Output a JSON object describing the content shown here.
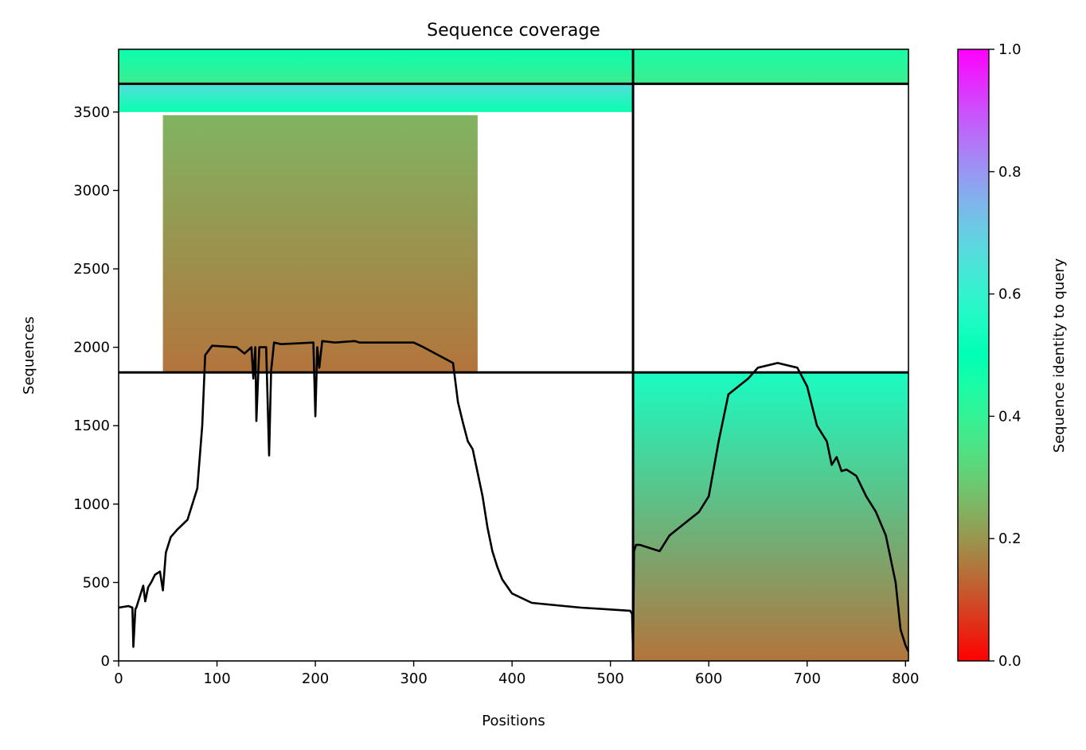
{
  "chart_data": {
    "type": "heatmap",
    "title": "Sequence coverage",
    "xlabel": "Positions",
    "ylabel": "Sequences",
    "xlim": [
      0,
      803
    ],
    "ylim": [
      0,
      3900
    ],
    "xticks": [
      0,
      100,
      200,
      300,
      400,
      500,
      600,
      700,
      800
    ],
    "yticks": [
      0,
      500,
      1000,
      1500,
      2000,
      2500,
      3000,
      3500
    ],
    "grid": false,
    "colorbar": {
      "label": "Sequence identity to query",
      "colormap": "rainbow_r",
      "range": [
        0.0,
        1.0
      ],
      "ticks": [
        0.0,
        0.2,
        0.4,
        0.6,
        0.8,
        1.0
      ],
      "tick_labels": [
        "0.0",
        "0.2",
        "0.4",
        "0.6",
        "0.8",
        "1.0"
      ]
    },
    "partition_lines": {
      "x": [
        523
      ],
      "y": [
        1840,
        3680
      ]
    },
    "coverage_blocks": [
      {
        "x_range": [
          0,
          523
        ],
        "y_range": [
          3680,
          3900
        ],
        "identity_bottom": 0.38,
        "identity_top": 0.48
      },
      {
        "x_range": [
          0,
          523
        ],
        "y_range": [
          3500,
          3680
        ],
        "identity_bottom": 0.48,
        "identity_top": 0.66
      },
      {
        "x_range": [
          45,
          365
        ],
        "y_range": [
          1840,
          3480
        ],
        "identity_bottom": 0.15,
        "identity_top": 0.25
      },
      {
        "x_range": [
          523,
          803
        ],
        "y_range": [
          3680,
          3900
        ],
        "identity_bottom": 0.38,
        "identity_top": 0.45
      },
      {
        "x_range": [
          523,
          803
        ],
        "y_range": [
          0,
          1840
        ],
        "identity_bottom": 0.15,
        "identity_top": 0.55
      }
    ],
    "series": [
      {
        "type": "line",
        "color": "#000000",
        "x": [
          0,
          10,
          14,
          15,
          17,
          18,
          20,
          25,
          27,
          30,
          33,
          37,
          42,
          45,
          48,
          53,
          60,
          70,
          80,
          85,
          88,
          95,
          120,
          128,
          135,
          137,
          139,
          140,
          143,
          150,
          153,
          155,
          158,
          165,
          198,
          200,
          202,
          204,
          207,
          220,
          240,
          245,
          300,
          310,
          340,
          345,
          350,
          355,
          360,
          365,
          370,
          375,
          380,
          385,
          390,
          400,
          420,
          470,
          520,
          522,
          523,
          524,
          526,
          530,
          550,
          560,
          570,
          590,
          600,
          610,
          620,
          640,
          650,
          670,
          690,
          700,
          710,
          720,
          725,
          730,
          735,
          740,
          750,
          760,
          770,
          780,
          790,
          795,
          800,
          803
        ],
        "y": [
          340,
          350,
          340,
          90,
          330,
          340,
          380,
          480,
          380,
          470,
          500,
          550,
          570,
          450,
          690,
          790,
          840,
          900,
          1100,
          1500,
          1950,
          2010,
          2000,
          1960,
          2000,
          1800,
          2000,
          1530,
          2000,
          2000,
          1310,
          1850,
          2030,
          2020,
          2030,
          1560,
          2000,
          1870,
          2040,
          2030,
          2040,
          2030,
          2030,
          2000,
          1900,
          1650,
          1520,
          1400,
          1350,
          1200,
          1050,
          850,
          700,
          600,
          520,
          430,
          370,
          340,
          320,
          300,
          50,
          700,
          740,
          740,
          700,
          800,
          850,
          950,
          1050,
          1400,
          1700,
          1800,
          1870,
          1900,
          1870,
          1750,
          1500,
          1400,
          1250,
          1300,
          1210,
          1220,
          1180,
          1050,
          950,
          800,
          500,
          200,
          100,
          60
        ]
      }
    ]
  }
}
